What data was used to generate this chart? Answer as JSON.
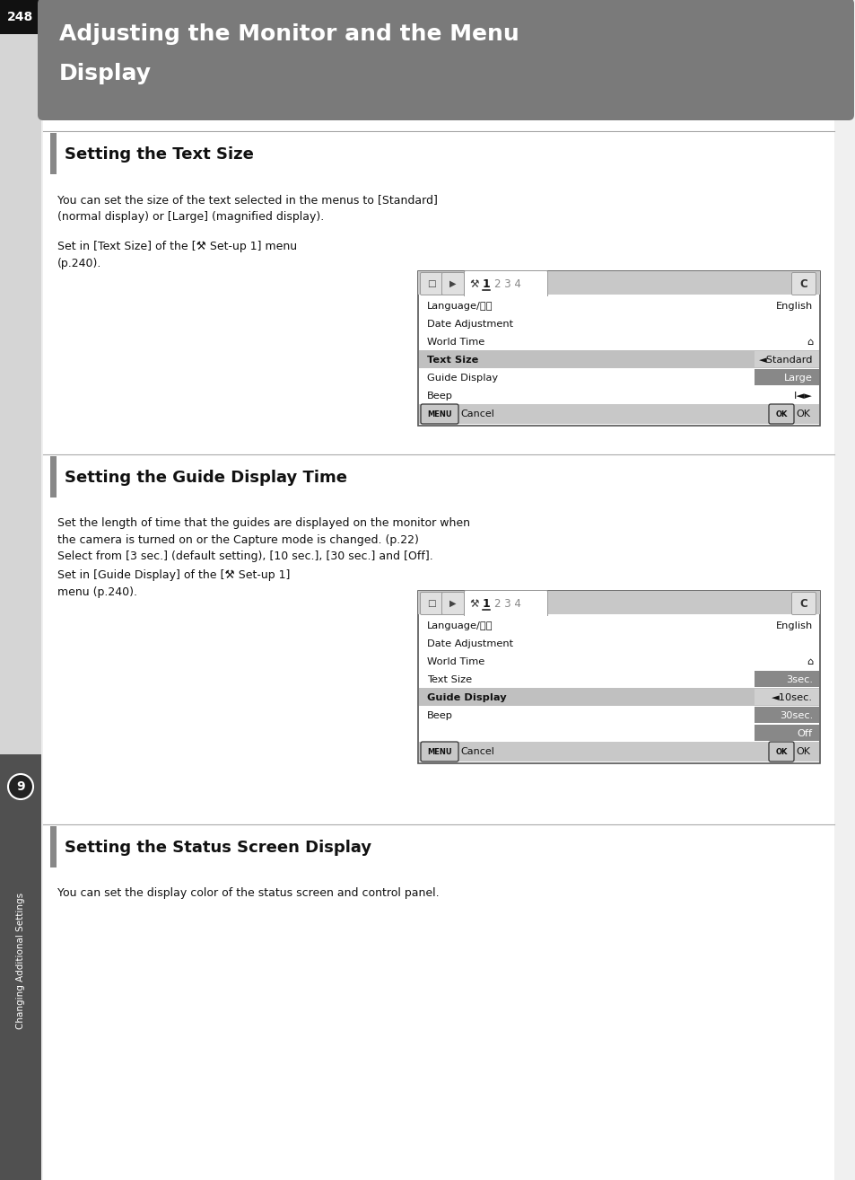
{
  "page_number": "248",
  "main_title_line1": "Adjusting the Monitor and the Menu",
  "main_title_line2": "Display",
  "section1_title": "Setting the Text Size",
  "section1_body1": "You can set the size of the text selected in the menus to [Standard]\n(normal display) or [Large] (magnified display).",
  "section1_body2": "Set in [Text Size] of the [⚒ Set-up 1] menu\n(p.240).",
  "section2_title": "Setting the Guide Display Time",
  "section2_body1": "Set the length of time that the guides are displayed on the monitor when\nthe camera is turned on or the Capture mode is changed. (p.22)\nSelect from [3 sec.] (default setting), [10 sec.], [30 sec.] and [Off].",
  "section2_body2": "Set in [Guide Display] of the [⚒ Set-up 1]\nmenu (p.240).",
  "section3_title": "Setting the Status Screen Display",
  "section3_body": "You can set the display color of the status screen and control panel.",
  "sidebar_text": "Changing Additional Settings",
  "sidebar_number": "9",
  "bg_color": "#f0f0f0",
  "header_bg": "#7a7a7a",
  "left_bar_bg": "#c8c8c8",
  "page_num_bg": "#111111",
  "section_bar_color": "#888888",
  "menu1_rows": [
    {
      "label": "Language/言語",
      "value": "English",
      "highlight": false,
      "val_dark": false
    },
    {
      "label": "Date Adjustment",
      "value": "",
      "highlight": false,
      "val_dark": false
    },
    {
      "label": "World Time",
      "value": "⌂",
      "highlight": false,
      "val_dark": false
    },
    {
      "label": "Text Size",
      "value": "◄Standard",
      "highlight": true,
      "val_dark": false
    },
    {
      "label": "Guide Display",
      "value": "Large",
      "highlight": false,
      "val_dark": true
    },
    {
      "label": "Beep",
      "value": "I◄►",
      "highlight": false,
      "val_dark": false
    }
  ],
  "menu2_rows": [
    {
      "label": "Language/言語",
      "value": "English",
      "highlight": false,
      "val_dark": false
    },
    {
      "label": "Date Adjustment",
      "value": "",
      "highlight": false,
      "val_dark": false
    },
    {
      "label": "World Time",
      "value": "⌂",
      "highlight": false,
      "val_dark": false
    },
    {
      "label": "Text Size",
      "value": "3sec.",
      "highlight": false,
      "val_dark": true
    },
    {
      "label": "Guide Display",
      "value": "◄10sec.",
      "highlight": true,
      "val_dark": false
    },
    {
      "label": "Beep",
      "value": "30sec.",
      "highlight": false,
      "val_dark": true
    }
  ],
  "menu2_extra": "Off"
}
